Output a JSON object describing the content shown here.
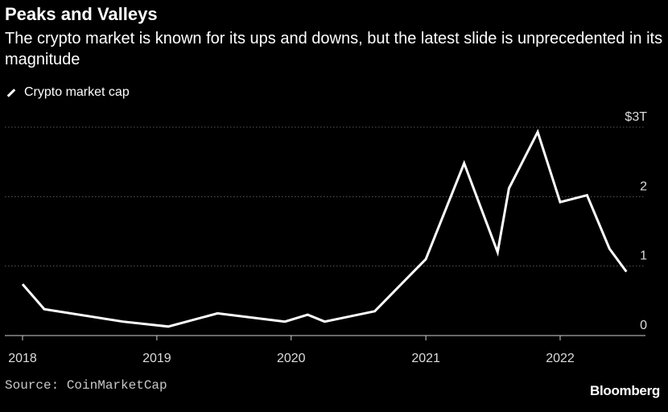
{
  "header": {
    "title": "Peaks and Valleys",
    "subtitle": "The crypto market is known for its ups and downs, but the latest slide is unprecedented in its magnitude"
  },
  "footer": {
    "source": "Source: CoinMarketCap",
    "brand": "Bloomberg"
  },
  "colors": {
    "background": "#000000",
    "line": "#ffffff",
    "gridline": "#5a5a5a"
  },
  "chart_data": {
    "type": "line",
    "title": "Peaks and Valleys",
    "subtitle": "The crypto market is known for its ups and downs, but the latest slide is unprecedented in its magnitude",
    "xlabel": "",
    "ylabel": "",
    "legend": "top-left",
    "grid": true,
    "x_ticks": [
      "2018",
      "2019",
      "2020",
      "2021",
      "2022"
    ],
    "y_ticks": [
      "0",
      "1",
      "2",
      "$3T"
    ],
    "ylim": [
      0,
      3
    ],
    "xlim": [
      "2018-01-01",
      "2022-08-01"
    ],
    "series": [
      {
        "name": "Crypto market cap",
        "x": [
          "2018-01-01",
          "2018-03-01",
          "2018-10-01",
          "2019-02-01",
          "2019-06-15",
          "2019-12-15",
          "2020-02-15",
          "2020-04-01",
          "2020-08-15",
          "2021-01-01",
          "2021-04-15",
          "2021-07-15",
          "2021-08-15",
          "2021-11-01",
          "2022-01-01",
          "2022-03-15",
          "2022-05-15",
          "2022-06-30"
        ],
        "values": [
          0.74,
          0.38,
          0.2,
          0.13,
          0.32,
          0.2,
          0.3,
          0.2,
          0.35,
          1.1,
          2.48,
          1.2,
          2.12,
          2.93,
          1.92,
          2.02,
          1.25,
          0.92
        ]
      }
    ]
  }
}
